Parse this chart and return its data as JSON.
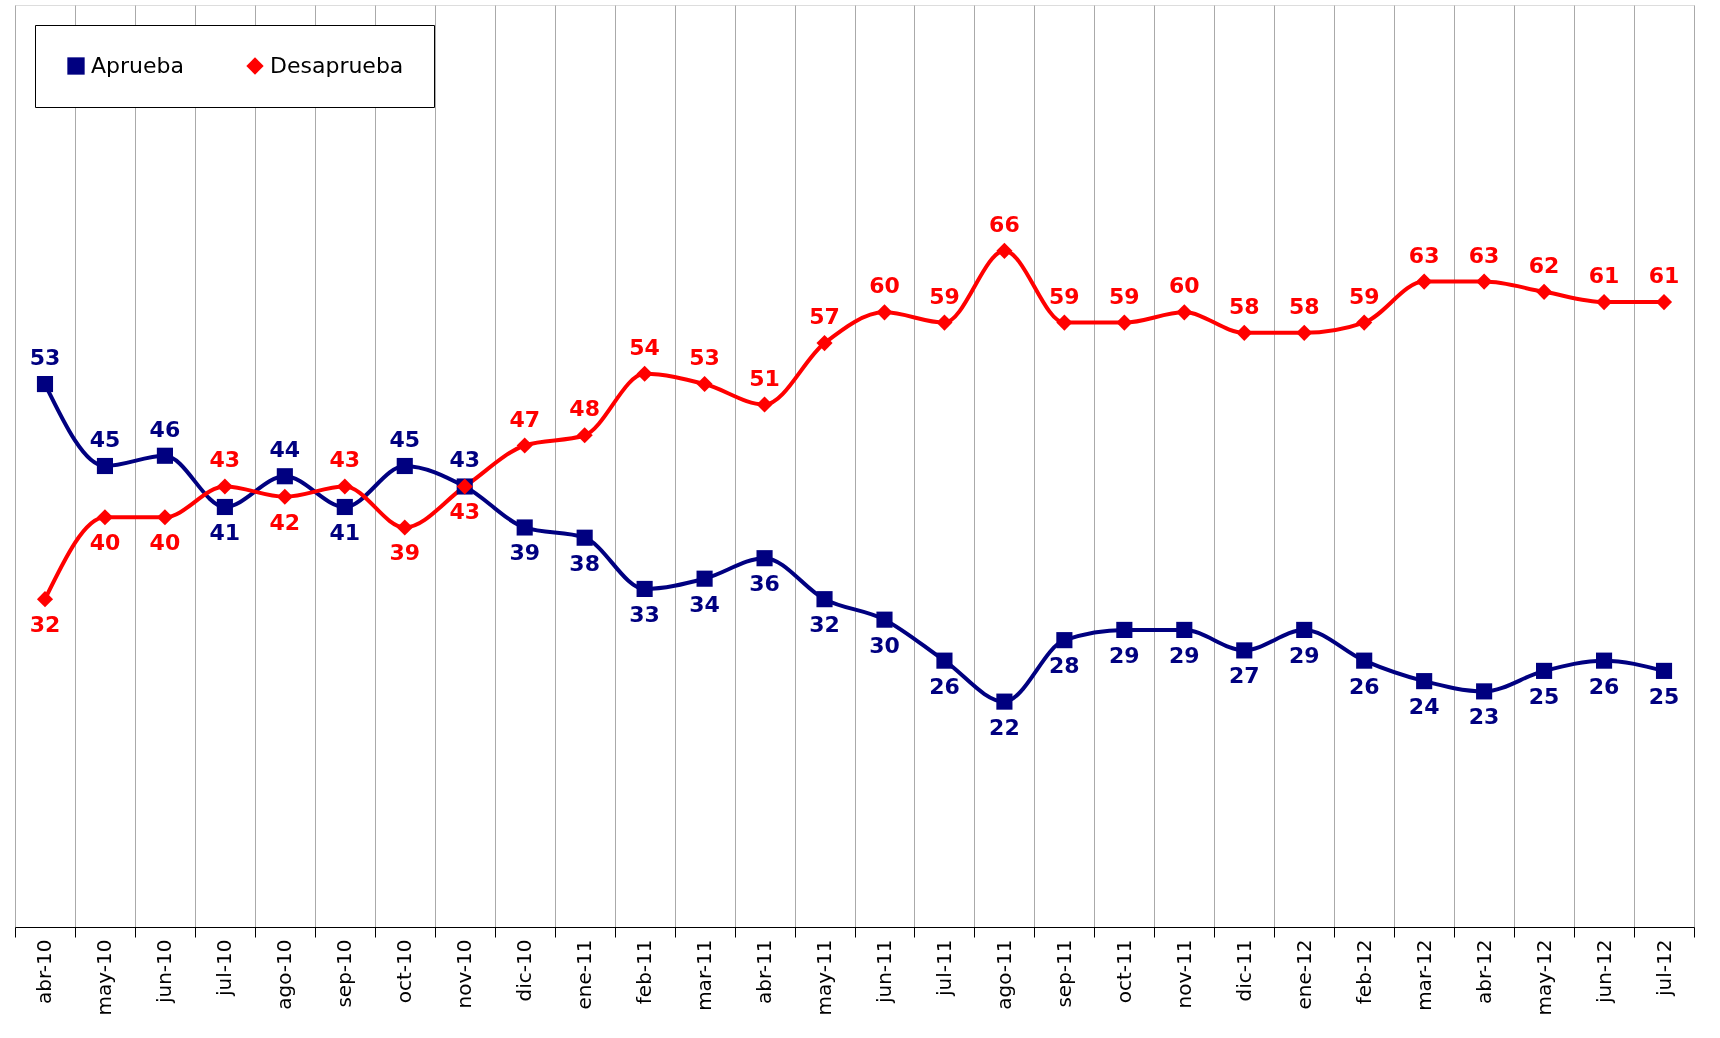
{
  "chart_data": {
    "type": "line",
    "categories": [
      "abr-10",
      "may-10",
      "jun-10",
      "jul-10",
      "ago-10",
      "sep-10",
      "oct-10",
      "nov-10",
      "dic-10",
      "ene-11",
      "feb-11",
      "mar-11",
      "abr-11",
      "may-11",
      "jun-11",
      "jul-11",
      "ago-11",
      "sep-11",
      "oct-11",
      "nov-11",
      "dic-11",
      "ene-12",
      "feb-12",
      "mar-12",
      "abr-12",
      "may-12",
      "jun-12",
      "jul-12"
    ],
    "series": [
      {
        "name": "Aprueba",
        "color": "#000080",
        "marker": "square",
        "values": [
          53,
          45,
          46,
          41,
          44,
          41,
          45,
          43,
          39,
          38,
          33,
          34,
          36,
          32,
          30,
          26,
          22,
          28,
          29,
          29,
          27,
          29,
          26,
          24,
          23,
          25,
          26,
          25
        ]
      },
      {
        "name": "Desaprueba",
        "color": "#ff0000",
        "marker": "diamond",
        "values": [
          32,
          40,
          40,
          43,
          42,
          43,
          39,
          43,
          47,
          48,
          54,
          53,
          51,
          57,
          60,
          59,
          66,
          59,
          59,
          60,
          58,
          58,
          59,
          63,
          63,
          62,
          61,
          61
        ]
      }
    ],
    "ylim": [
      0,
      90
    ],
    "tick_labels": "x",
    "grid": "x",
    "legend": "top left",
    "data_labels": true,
    "line_style": "solid"
  }
}
